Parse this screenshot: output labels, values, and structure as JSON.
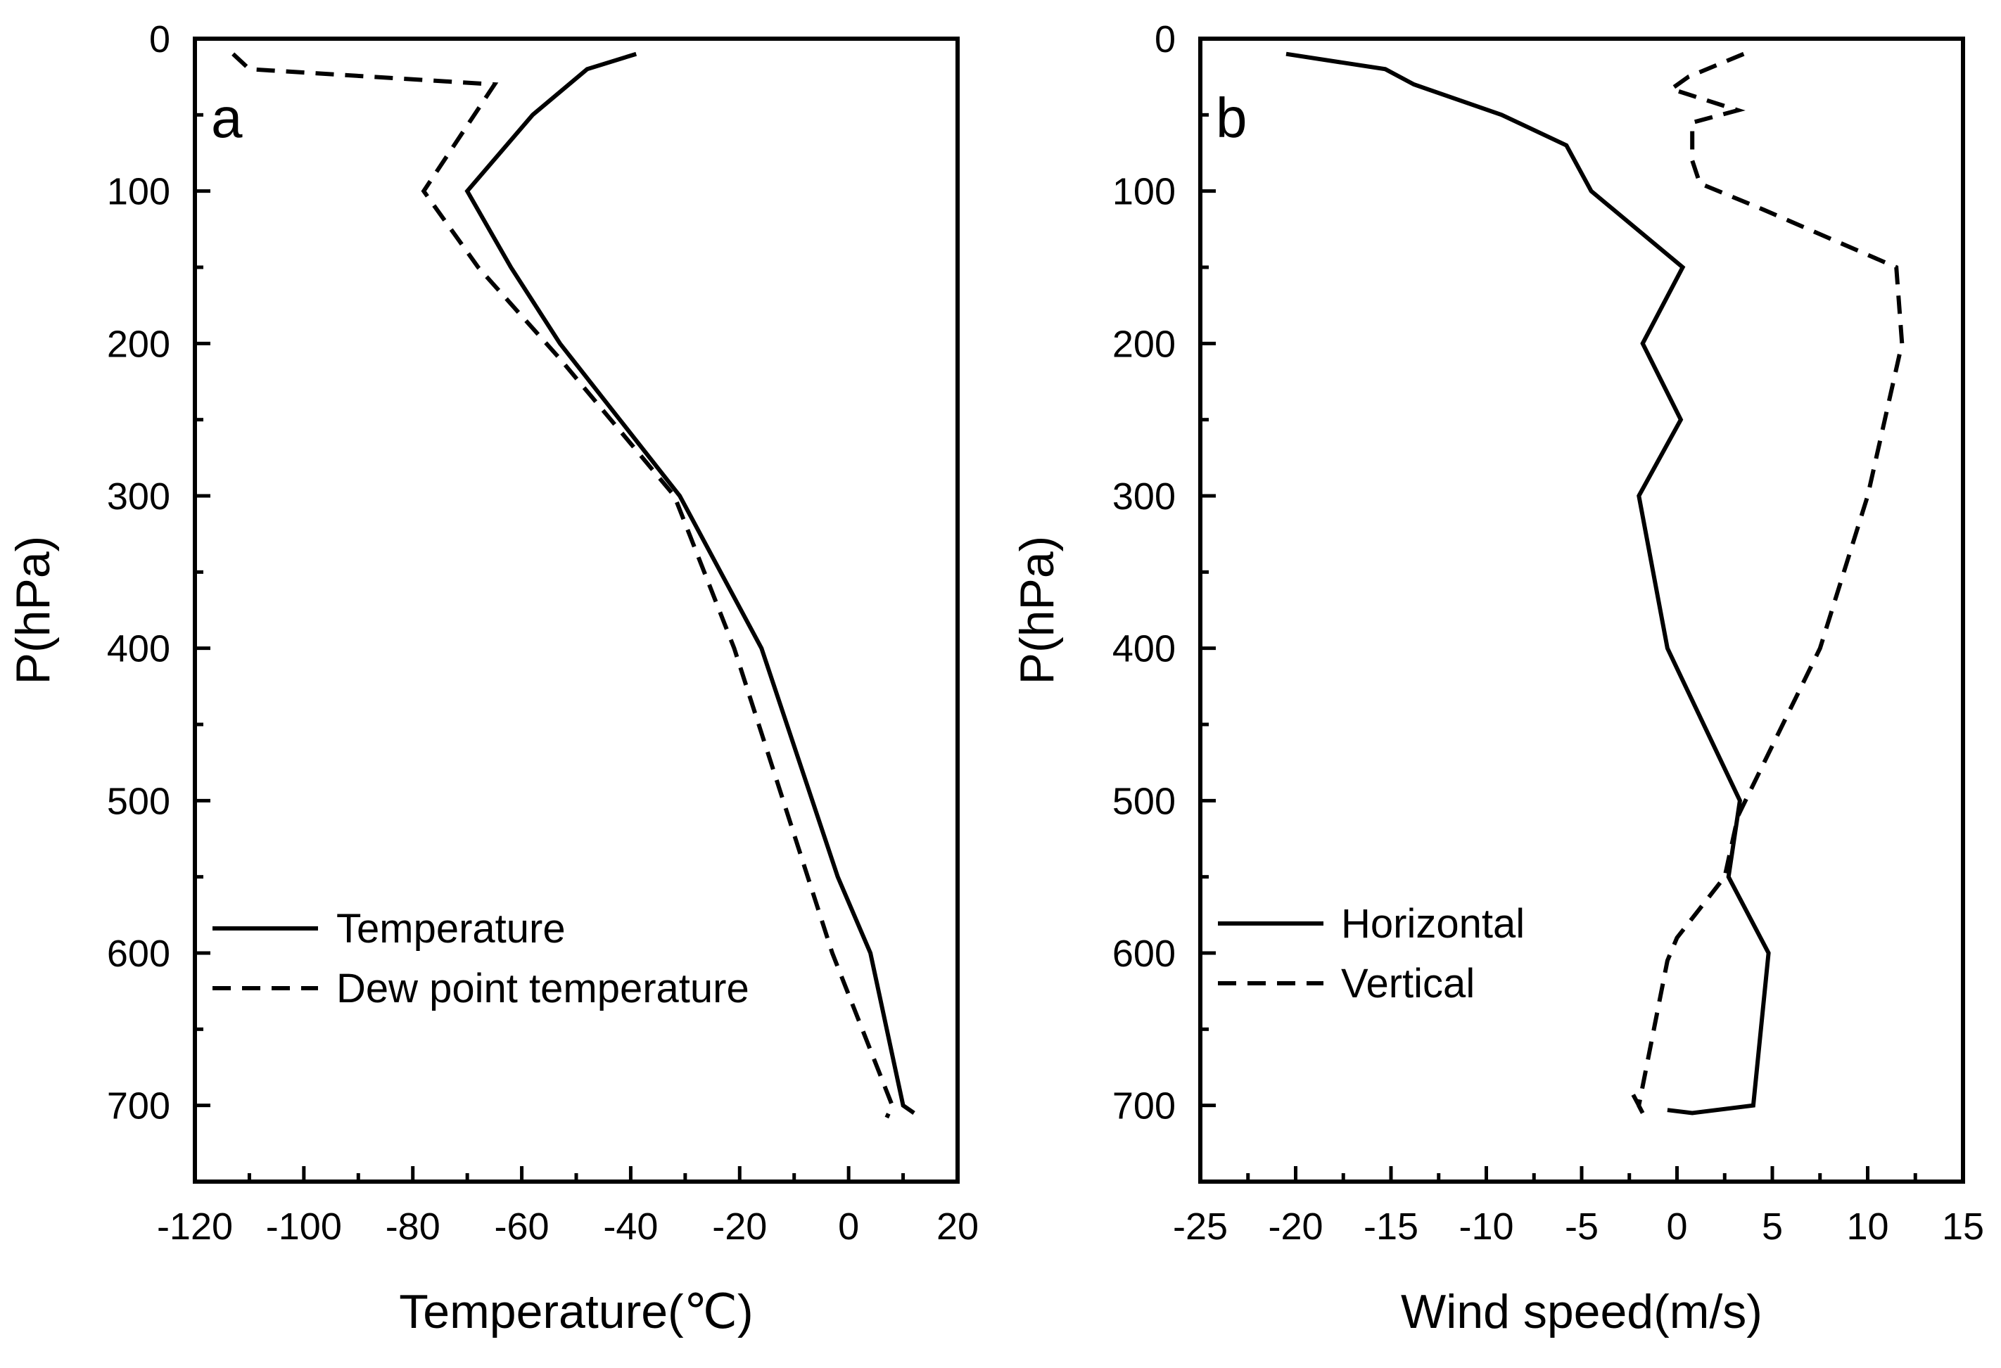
{
  "colors": {
    "line": "#000000",
    "background": "#ffffff"
  },
  "chart_data": [
    {
      "type": "line",
      "panel_label": "a",
      "xlabel": "Temperature(℃)",
      "ylabel": "P(hPa)",
      "xlim": [
        -120,
        20
      ],
      "ylim": [
        750,
        0
      ],
      "y_inverted": true,
      "xticks": [
        -120,
        -100,
        -80,
        -60,
        -40,
        -20,
        0,
        20
      ],
      "xtick_labels": [
        "-120",
        "-100",
        "-80",
        "-60",
        "-40",
        "-20",
        "0",
        "20"
      ],
      "yticks": [
        0,
        100,
        200,
        300,
        400,
        500,
        600,
        700
      ],
      "ytick_labels": [
        "0",
        "100",
        "200",
        "300",
        "400",
        "500",
        "600",
        "700"
      ],
      "legend_position": "lower-left",
      "series": [
        {
          "name": "Temperature",
          "style": "solid",
          "points": [
            [
              -39,
              10
            ],
            [
              -48,
              20
            ],
            [
              -58,
              50
            ],
            [
              -70,
              100
            ],
            [
              -62,
              150
            ],
            [
              -53,
              200
            ],
            [
              -42,
              250
            ],
            [
              -31,
              300
            ],
            [
              -16,
              400
            ],
            [
              -2,
              550
            ],
            [
              4,
              600
            ],
            [
              10,
              700
            ],
            [
              12,
              705
            ]
          ]
        },
        {
          "name": "Dew point temperature",
          "style": "dashed",
          "points": [
            [
              -113,
              10
            ],
            [
              -110,
              20
            ],
            [
              -65,
              30
            ],
            [
              -78,
              100
            ],
            [
              -68,
              150
            ],
            [
              -53,
              210
            ],
            [
              -32,
              300
            ],
            [
              -21,
              400
            ],
            [
              -3,
              600
            ],
            [
              8,
              700
            ],
            [
              7,
              708
            ]
          ]
        }
      ]
    },
    {
      "type": "line",
      "panel_label": "b",
      "xlabel": "Wind speed(m/s)",
      "ylabel": "P(hPa)",
      "xlim": [
        -25,
        15
      ],
      "ylim": [
        750,
        0
      ],
      "y_inverted": true,
      "xticks": [
        -25,
        -20,
        -15,
        -10,
        -5,
        0,
        5,
        10,
        15
      ],
      "xtick_labels": [
        "-25",
        "-20",
        "-15",
        "-10",
        "-5",
        "0",
        "5",
        "10",
        "15"
      ],
      "yticks": [
        0,
        100,
        200,
        300,
        400,
        500,
        600,
        700
      ],
      "ytick_labels": [
        "0",
        "100",
        "200",
        "300",
        "400",
        "500",
        "600",
        "700"
      ],
      "legend_position": "lower-left",
      "series": [
        {
          "name": "Horizontal",
          "style": "solid",
          "points": [
            [
              -20.5,
              10
            ],
            [
              -15.3,
              20
            ],
            [
              -13.8,
              30
            ],
            [
              -9.2,
              50
            ],
            [
              -5.8,
              70
            ],
            [
              -4.5,
              100
            ],
            [
              0.3,
              150
            ],
            [
              -1.8,
              200
            ],
            [
              0.2,
              250
            ],
            [
              -2,
              300
            ],
            [
              -0.5,
              400
            ],
            [
              3.3,
              500
            ],
            [
              2.7,
              550
            ],
            [
              4.8,
              600
            ],
            [
              4,
              700
            ],
            [
              0.8,
              705
            ],
            [
              -0.5,
              703
            ]
          ]
        },
        {
          "name": "Vertical",
          "style": "dashed",
          "points": [
            [
              3.5,
              10
            ],
            [
              0.6,
              25
            ],
            [
              -0.3,
              33
            ],
            [
              3.2,
              47
            ],
            [
              0.8,
              55
            ],
            [
              0.8,
              80
            ],
            [
              1.2,
              95
            ],
            [
              4.5,
              112
            ],
            [
              11.5,
              150
            ],
            [
              11.8,
              200
            ],
            [
              10,
              300
            ],
            [
              7.5,
              400
            ],
            [
              3.2,
              510
            ],
            [
              2.5,
              550
            ],
            [
              0,
              590
            ],
            [
              -0.5,
              605
            ],
            [
              -2,
              700
            ],
            [
              -2.3,
              693
            ],
            [
              -1.8,
              705
            ]
          ]
        }
      ]
    }
  ]
}
